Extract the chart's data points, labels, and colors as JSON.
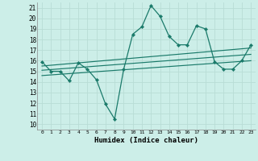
{
  "title": "",
  "xlabel": "Humidex (Indice chaleur)",
  "bg_color": "#cceee8",
  "grid_color": "#b8ddd6",
  "line_color": "#1a7a6a",
  "xlim": [
    -0.5,
    23.5
  ],
  "ylim": [
    9.5,
    21.5
  ],
  "xticks": [
    0,
    1,
    2,
    3,
    4,
    5,
    6,
    7,
    8,
    9,
    10,
    11,
    12,
    13,
    14,
    15,
    16,
    17,
    18,
    19,
    20,
    21,
    22,
    23
  ],
  "yticks": [
    10,
    11,
    12,
    13,
    14,
    15,
    16,
    17,
    18,
    19,
    20,
    21
  ],
  "main_x": [
    0,
    1,
    2,
    3,
    4,
    5,
    6,
    7,
    8,
    9,
    10,
    11,
    12,
    13,
    14,
    15,
    16,
    17,
    18,
    19,
    20,
    21,
    22,
    23
  ],
  "main_y": [
    15.9,
    15.0,
    15.0,
    14.1,
    15.8,
    15.2,
    14.2,
    11.9,
    10.5,
    15.2,
    18.5,
    19.2,
    21.2,
    20.2,
    18.3,
    17.5,
    17.5,
    19.3,
    19.0,
    15.9,
    15.2,
    15.2,
    16.0,
    17.5
  ],
  "trend1_x": [
    0,
    23
  ],
  "trend1_y": [
    15.5,
    17.2
  ],
  "trend2_x": [
    0,
    23
  ],
  "trend2_y": [
    15.1,
    16.6
  ],
  "trend3_x": [
    0,
    23
  ],
  "trend3_y": [
    14.6,
    16.0
  ]
}
